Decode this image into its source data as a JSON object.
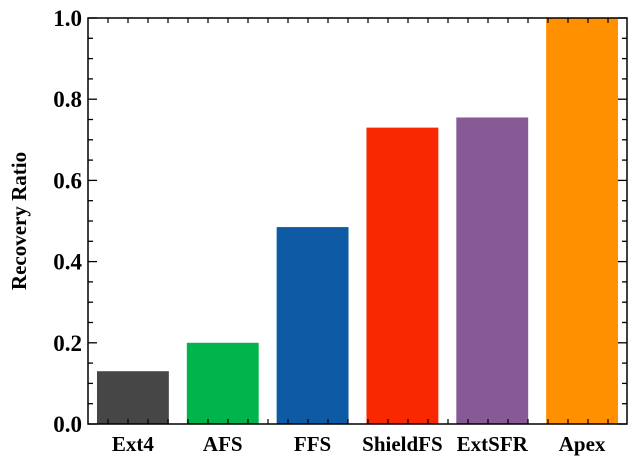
{
  "chart_data": {
    "type": "bar",
    "title": "",
    "xlabel": "",
    "ylabel": "Recovery Ratio",
    "categories": [
      "Ext4",
      "AFS",
      "FFS",
      "ShieldFS",
      "ExtSFR",
      "Apex"
    ],
    "values": [
      0.13,
      0.2,
      0.485,
      0.73,
      0.755,
      1.0
    ],
    "colors": [
      "#464646",
      "#00b44b",
      "#0f5aa5",
      "#fa2800",
      "#875a96",
      "#ff9100"
    ],
    "ylim": [
      0,
      1.0
    ],
    "yticks": [
      0.0,
      0.2,
      0.4,
      0.6,
      0.8,
      1.0
    ],
    "ytick_labels": [
      "0.0",
      "0.2",
      "0.4",
      "0.6",
      "0.8",
      "1.0"
    ],
    "grid": false,
    "legend": "none"
  }
}
